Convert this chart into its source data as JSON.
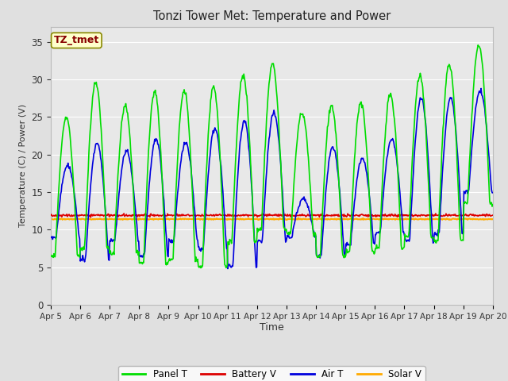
{
  "title": "Tonzi Tower Met: Temperature and Power",
  "xlabel": "Time",
  "ylabel": "Temperature (C) / Power (V)",
  "ylim": [
    0,
    37
  ],
  "yticks": [
    0,
    5,
    10,
    15,
    20,
    25,
    30,
    35
  ],
  "annotation_text": "TZ_tmet",
  "annotation_color": "#880000",
  "annotation_bg": "#ffffcc",
  "annotation_border": "#888800",
  "fig_bg": "#e0e0e0",
  "plot_bg": "#e8e8e8",
  "grid_color": "#ffffff",
  "panel_t_color": "#00dd00",
  "battery_v_color": "#dd0000",
  "air_t_color": "#0000dd",
  "solar_v_color": "#ffaa00",
  "x_start_day": 5,
  "x_end_day": 20,
  "xtick_labels": [
    "Apr 5",
    "Apr 6",
    "Apr 7",
    "Apr 8",
    "Apr 9",
    "Apr 10",
    "Apr 11",
    "Apr 12",
    "Apr 13",
    "Apr 14",
    "Apr 15",
    "Apr 16",
    "Apr 17",
    "Apr 18",
    "Apr 19",
    "Apr 20"
  ],
  "xtick_positions": [
    5,
    6,
    7,
    8,
    9,
    10,
    11,
    12,
    13,
    14,
    15,
    16,
    17,
    18,
    19,
    20
  ],
  "panel_peaks": [
    25,
    29.5,
    26.5,
    28.5,
    28.5,
    29,
    30.5,
    32,
    25.5,
    26.5,
    27.0,
    28,
    30.5,
    32,
    34.5,
    17
  ],
  "panel_mins": [
    6.5,
    7.5,
    7.0,
    5.5,
    6.0,
    5.0,
    8.5,
    10,
    9.5,
    6.5,
    7.0,
    7.5,
    9.0,
    8.5,
    13.5,
    17
  ],
  "air_peaks": [
    18.5,
    21.5,
    20.5,
    22,
    21.5,
    23.5,
    24.5,
    25.5,
    14,
    21,
    19.5,
    22,
    27.5,
    27.5,
    28.5,
    17.5
  ],
  "air_mins": [
    9,
    6,
    8.5,
    6.5,
    8.5,
    7.5,
    5,
    8.5,
    9,
    6.5,
    8,
    9.5,
    8.5,
    9.5,
    15,
    17
  ],
  "battery_base": 11.9,
  "solar_base": 11.4
}
